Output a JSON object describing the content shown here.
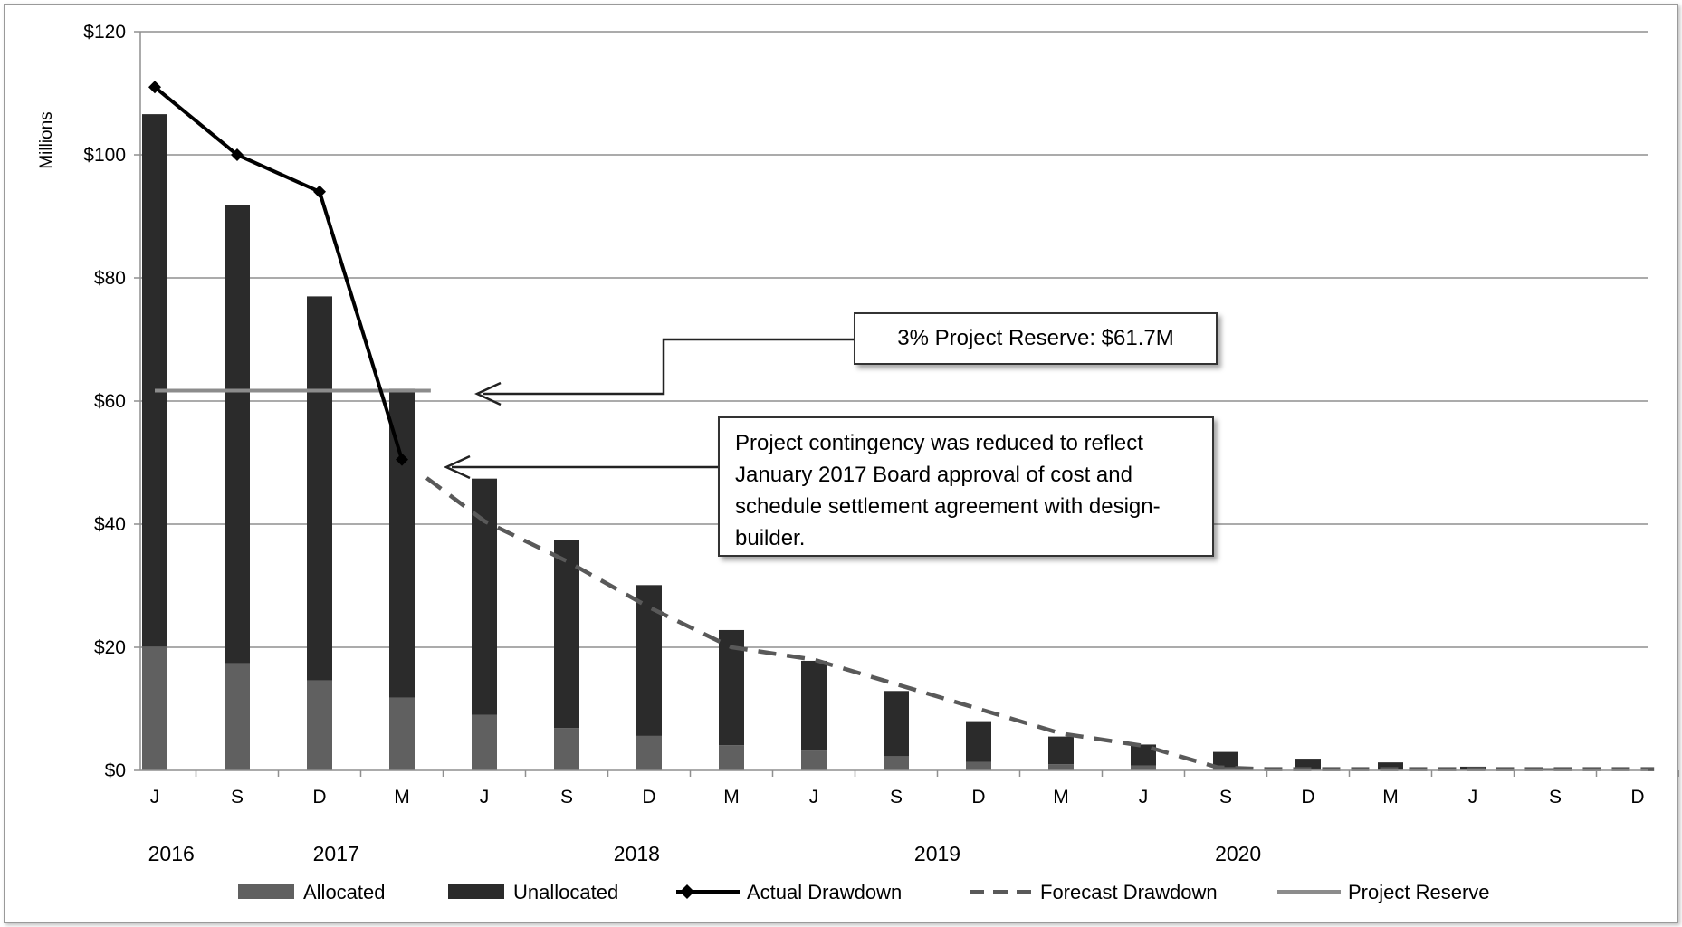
{
  "chart_data": {
    "type": "bar",
    "stacked": true,
    "title": "",
    "xlabel": "",
    "ylabel": "Millions",
    "ylim": [
      0,
      120
    ],
    "yticks": [
      "$0",
      "$20",
      "$40",
      "$60",
      "$80",
      "$100",
      "$120"
    ],
    "categories": [
      "J",
      "S",
      "D",
      "M",
      "J",
      "S",
      "D",
      "M",
      "J",
      "S",
      "D",
      "M",
      "J",
      "S",
      "D",
      "M",
      "J",
      "S",
      "D"
    ],
    "years": [
      "2016",
      "2017",
      "2018",
      "2019",
      "2020"
    ],
    "series": [
      {
        "name": "Allocated",
        "type": "bar",
        "color": "#606060",
        "values": [
          20.1,
          17.4,
          14.6,
          11.8,
          9.0,
          6.9,
          5.6,
          4.1,
          3.2,
          2.3,
          1.4,
          1.0,
          0.8,
          0.5,
          0.3,
          0.2,
          0.1,
          0.05,
          0
        ]
      },
      {
        "name": "Unallocated",
        "type": "bar",
        "color": "#2b2b2b",
        "values": [
          86.5,
          74.5,
          62.4,
          50.2,
          38.4,
          30.5,
          24.5,
          18.7,
          14.6,
          10.6,
          6.6,
          4.5,
          3.4,
          2.5,
          1.6,
          1.1,
          0.5,
          0.3,
          0
        ]
      },
      {
        "name": "Actual Drawdown",
        "type": "line",
        "color": "#000000",
        "x": [
          0,
          1,
          2,
          3
        ],
        "values": [
          111,
          100,
          94,
          50.5
        ]
      },
      {
        "name": "Forecast Drawdown",
        "type": "line",
        "dashed": true,
        "color": "#595959",
        "x": [
          3.3,
          4,
          5,
          6,
          7,
          8,
          9,
          10,
          11,
          12,
          12.9,
          13.5,
          18.2
        ],
        "values": [
          47.5,
          40.5,
          34,
          26.5,
          20,
          18,
          14,
          10,
          6,
          4,
          0.5,
          0.2,
          0.2
        ]
      },
      {
        "name": "Project Reserve",
        "type": "line",
        "color": "#8c8c8c",
        "x": [
          0,
          3.35
        ],
        "values": [
          61.7,
          61.7
        ]
      }
    ],
    "annotations": [
      "3% Project Reserve: $61.7M",
      "Project contingency was  reduced to reflect January 2017 Board approval of  cost and schedule settlement agreement with design-builder."
    ],
    "legend": [
      "Allocated",
      "Unallocated",
      "Actual Drawdown",
      "Forecast Drawdown",
      "Project Reserve"
    ],
    "legend_position": "bottom",
    "grid": true
  }
}
